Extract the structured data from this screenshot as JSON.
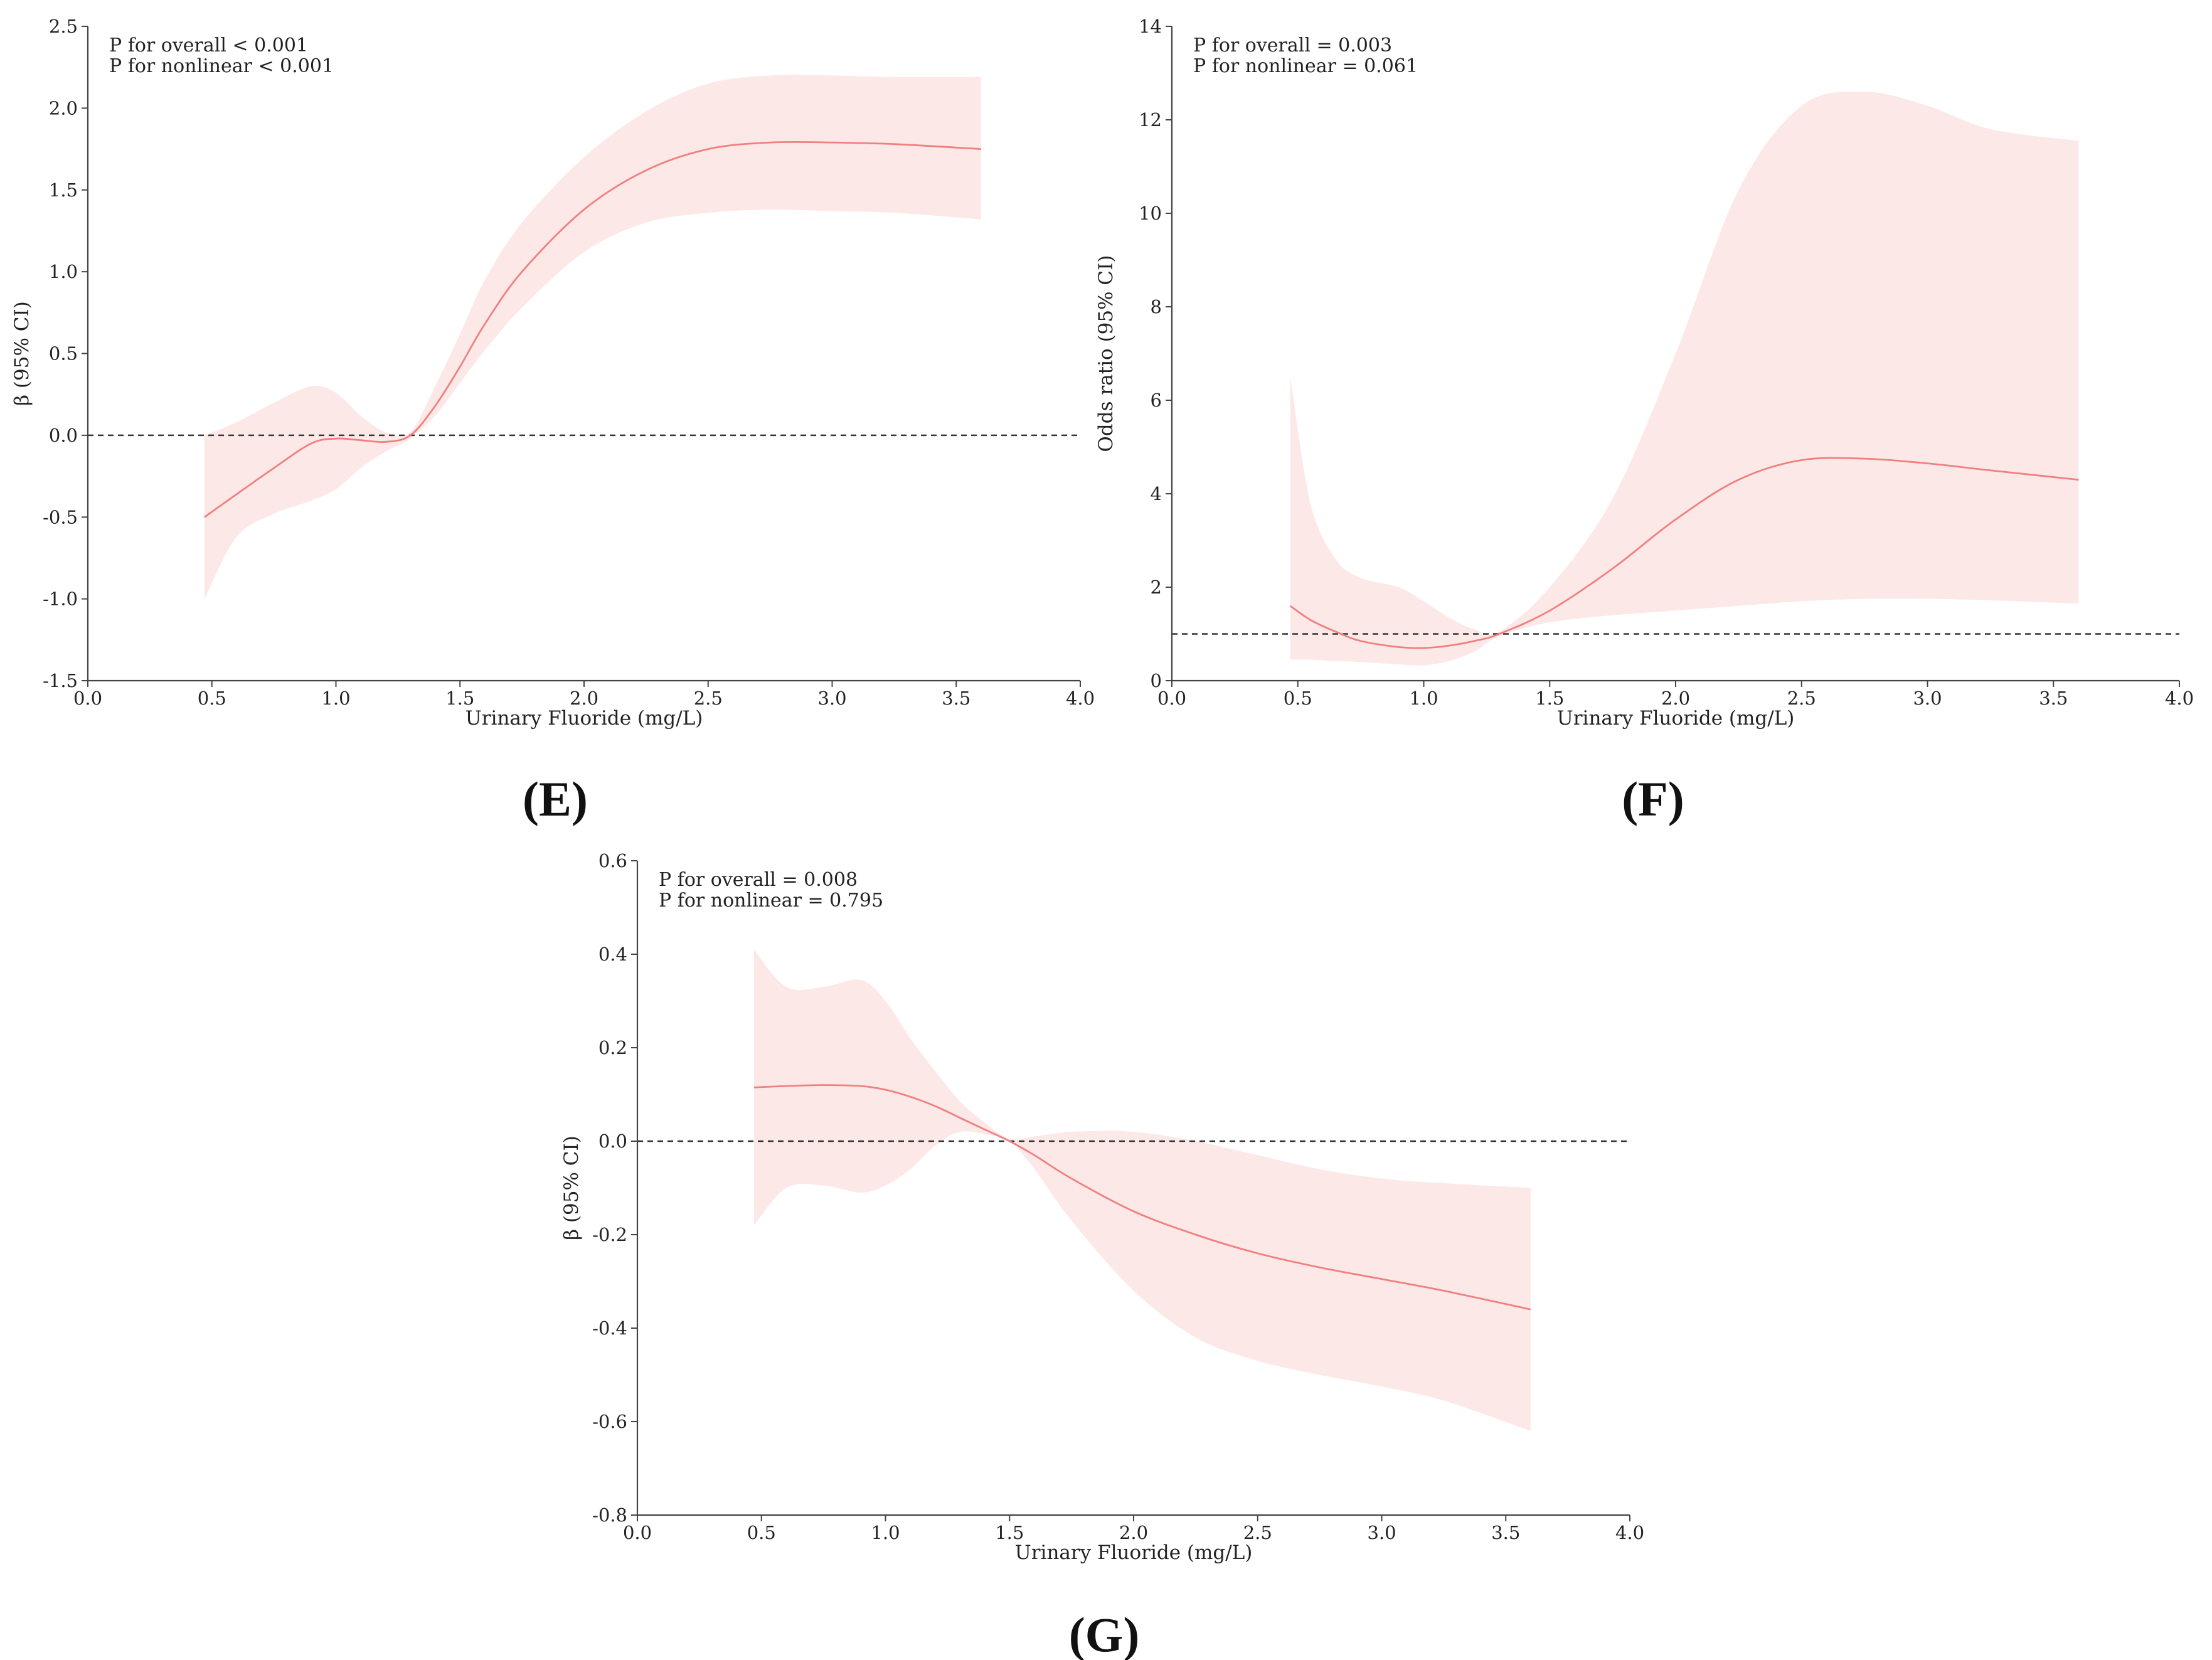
{
  "colors": {
    "line": "#f08080",
    "band": "#fde8e8",
    "reference": "#333333"
  },
  "chart_data": [
    {
      "type": "line",
      "panel_label": "(E)",
      "xlabel": "Urinary Fluoride (mg/L)",
      "ylabel": "β (95% CI)",
      "xlim": [
        0.0,
        4.0
      ],
      "ylim": [
        -1.5,
        2.5
      ],
      "x_ticks": [
        "0.0",
        "0.5",
        "1.0",
        "1.5",
        "2.0",
        "2.5",
        "3.0",
        "3.5",
        "4.0"
      ],
      "y_ticks": [
        "-1.5",
        "-1.0",
        "-0.5",
        "0.0",
        "0.5",
        "1.0",
        "1.5",
        "2.0",
        "2.5"
      ],
      "reference_y": 0,
      "annotations": [
        "P for overall < 0.001",
        "P for nonlinear < 0.001"
      ],
      "x": [
        0.47,
        0.6,
        0.75,
        0.9,
        1.0,
        1.1,
        1.2,
        1.3,
        1.4,
        1.5,
        1.6,
        1.75,
        2.0,
        2.25,
        2.5,
        2.75,
        3.0,
        3.25,
        3.6
      ],
      "y": [
        -0.5,
        -0.36,
        -0.2,
        -0.05,
        -0.02,
        -0.03,
        -0.04,
        0.0,
        0.18,
        0.42,
        0.68,
        1.0,
        1.38,
        1.62,
        1.75,
        1.79,
        1.79,
        1.78,
        1.75
      ],
      "lower": [
        -1.0,
        -0.62,
        -0.48,
        -0.4,
        -0.33,
        -0.2,
        -0.1,
        -0.02,
        0.12,
        0.32,
        0.52,
        0.78,
        1.12,
        1.3,
        1.36,
        1.38,
        1.37,
        1.36,
        1.32
      ],
      "upper": [
        0.0,
        0.08,
        0.2,
        0.3,
        0.26,
        0.12,
        0.02,
        0.02,
        0.3,
        0.62,
        0.95,
        1.3,
        1.7,
        1.98,
        2.15,
        2.2,
        2.2,
        2.19,
        2.19
      ]
    },
    {
      "type": "line",
      "panel_label": "(F)",
      "xlabel": "Urinary Fluoride (mg/L)",
      "ylabel": "Odds ratio (95% CI)",
      "xlim": [
        0.0,
        4.0
      ],
      "ylim": [
        0,
        14
      ],
      "x_ticks": [
        "0.0",
        "0.5",
        "1.0",
        "1.5",
        "2.0",
        "2.5",
        "3.0",
        "3.5",
        "4.0"
      ],
      "y_ticks": [
        "0",
        "2",
        "4",
        "6",
        "8",
        "10",
        "12",
        "14"
      ],
      "reference_y": 1,
      "annotations": [
        "P for overall = 0.003",
        "P for nonlinear = 0.061"
      ],
      "x": [
        0.47,
        0.55,
        0.65,
        0.75,
        0.9,
        1.0,
        1.1,
        1.2,
        1.3,
        1.5,
        1.75,
        2.0,
        2.25,
        2.5,
        2.75,
        3.0,
        3.25,
        3.6
      ],
      "y": [
        1.6,
        1.3,
        1.05,
        0.85,
        0.72,
        0.7,
        0.75,
        0.85,
        1.0,
        1.5,
        2.4,
        3.45,
        4.3,
        4.72,
        4.75,
        4.65,
        4.5,
        4.3
      ],
      "lower": [
        0.45,
        0.45,
        0.42,
        0.4,
        0.35,
        0.33,
        0.42,
        0.62,
        0.95,
        1.25,
        1.4,
        1.5,
        1.6,
        1.7,
        1.75,
        1.75,
        1.72,
        1.65
      ],
      "upper": [
        6.5,
        3.8,
        2.6,
        2.2,
        2.0,
        1.7,
        1.35,
        1.1,
        1.05,
        2.0,
        3.9,
        7.0,
        10.5,
        12.3,
        12.6,
        12.3,
        11.8,
        11.55
      ]
    },
    {
      "type": "line",
      "panel_label": "(G)",
      "xlabel": "Urinary Fluoride (mg/L)",
      "ylabel": "β (95% CI)",
      "xlim": [
        0.0,
        4.0
      ],
      "ylim": [
        -0.8,
        0.6
      ],
      "x_ticks": [
        "0.0",
        "0.5",
        "1.0",
        "1.5",
        "2.0",
        "2.5",
        "3.0",
        "3.5",
        "4.0"
      ],
      "y_ticks": [
        "-0.8",
        "-0.6",
        "-0.4",
        "-0.2",
        "0.0",
        "0.2",
        "0.4",
        "0.6"
      ],
      "reference_y": 0,
      "annotations": [
        "P for overall = 0.008",
        "P for nonlinear = 0.795"
      ],
      "x": [
        0.47,
        0.6,
        0.75,
        0.9,
        1.0,
        1.1,
        1.2,
        1.3,
        1.4,
        1.5,
        1.6,
        1.75,
        2.0,
        2.25,
        2.5,
        2.75,
        3.0,
        3.25,
        3.6
      ],
      "y": [
        0.115,
        0.118,
        0.12,
        0.118,
        0.11,
        0.095,
        0.075,
        0.05,
        0.025,
        0.0,
        -0.03,
        -0.08,
        -0.15,
        -0.2,
        -0.24,
        -0.27,
        -0.295,
        -0.32,
        -0.36
      ],
      "lower": [
        -0.18,
        -0.1,
        -0.095,
        -0.11,
        -0.095,
        -0.06,
        -0.01,
        0.02,
        0.015,
        0.0,
        -0.06,
        -0.17,
        -0.32,
        -0.42,
        -0.47,
        -0.5,
        -0.525,
        -0.555,
        -0.62
      ],
      "upper": [
        0.41,
        0.33,
        0.33,
        0.345,
        0.3,
        0.22,
        0.15,
        0.085,
        0.04,
        0.005,
        0.01,
        0.02,
        0.02,
        0.0,
        -0.03,
        -0.06,
        -0.08,
        -0.09,
        -0.1
      ]
    }
  ]
}
